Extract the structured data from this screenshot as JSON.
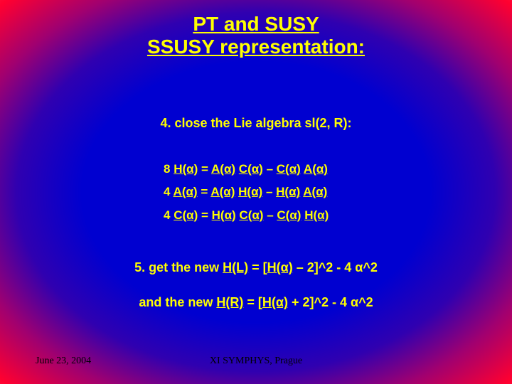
{
  "title_line1": "PT and SUSY",
  "title_line2": "SSUSY representation:",
  "point4": "4. close the Lie algebra sl(2, R):",
  "eq1_lhs_coef": "8 ",
  "eq1_lhs": "H(α)",
  "eq1_mid": "  = ",
  "eq1_r1": "A(α)",
  "eq1_sp1": " ",
  "eq1_r2": "C(α)",
  "eq1_minus": " – ",
  "eq1_r3": "C(α)",
  "eq1_sp2": " ",
  "eq1_r4": "A(α)",
  "eq2_lhs_coef": "4 ",
  "eq2_lhs": "A(α)",
  "eq2_mid": "  = ",
  "eq2_r1": "A(α)",
  "eq2_sp1": " ",
  "eq2_r2": "H(α)",
  "eq2_minus": " – ",
  "eq2_r3": "H(α)",
  "eq2_sp2": " ",
  "eq2_r4": "A(α)",
  "eq3_lhs_coef": "4 ",
  "eq3_lhs": "C(α)",
  "eq3_mid": "  = ",
  "eq3_r1": "H(α)",
  "eq3_sp1": " ",
  "eq3_r2": "C(α)",
  "eq3_minus": " – ",
  "eq3_r3": "C(α)",
  "eq3_sp2": " ",
  "eq3_r4": "H(α)",
  "point5_a": "5. get the new ",
  "point5_HL": "H(L)",
  "point5_b": "  = [",
  "point5_Ha": "H(α)",
  "point5_c": " – 2]^2 - 4 α^2",
  "point5b_a": "and the new ",
  "point5b_HR": "H(R)",
  "point5b_b": "  = [",
  "point5b_Ha": "H(α)",
  "point5b_c": " + 2]^2 - 4 α^2",
  "footer_date": "June 23, 2004",
  "footer_venue": "XI SYMPHYS, Prague",
  "colors": {
    "text": "#ffff00",
    "footer": "#000000",
    "bg_center": "#0000d0",
    "bg_edge": "#ff6060"
  },
  "fonts": {
    "body": "Comic Sans MS",
    "footer": "Times New Roman",
    "title_size_pt": 21,
    "body_size_pt": 13,
    "footer_size_pt": 10
  }
}
